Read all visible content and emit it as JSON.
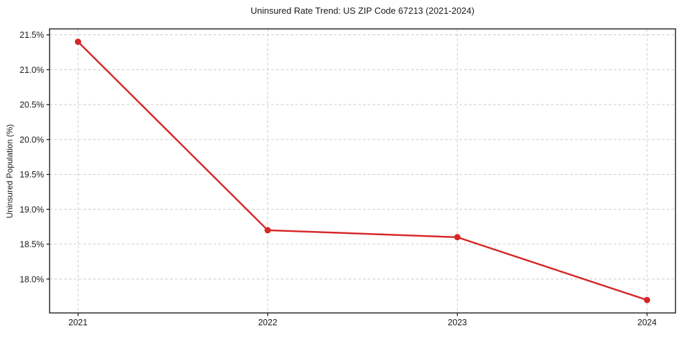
{
  "chart_data": {
    "type": "line",
    "title": "Uninsured Rate Trend: US ZIP Code 67213 (2021-2024)",
    "xlabel": "",
    "ylabel": "Uninsured Population (%)",
    "x": [
      2021,
      2022,
      2023,
      2024
    ],
    "values": [
      21.4,
      18.7,
      18.6,
      17.7
    ],
    "x_tick_labels": [
      "2021",
      "2022",
      "2023",
      "2024"
    ],
    "y_ticks": [
      18.0,
      18.5,
      19.0,
      19.5,
      20.0,
      20.5,
      21.0,
      21.5
    ],
    "y_tick_labels": [
      "18.0%",
      "18.5%",
      "19.0%",
      "19.5%",
      "20.0%",
      "20.5%",
      "21.0%",
      "21.5%"
    ],
    "xlim": [
      2020.85,
      2024.15
    ],
    "ylim": [
      17.515,
      21.585
    ],
    "grid": true,
    "legend_position": "none",
    "colors": {
      "line": "#d62728",
      "marker": "#d62728",
      "grid": "#cccccc",
      "spine": "#1a1a1a",
      "tick": "#1a1a1a",
      "text": "#1a1a1a",
      "background": "#ffffff"
    }
  }
}
